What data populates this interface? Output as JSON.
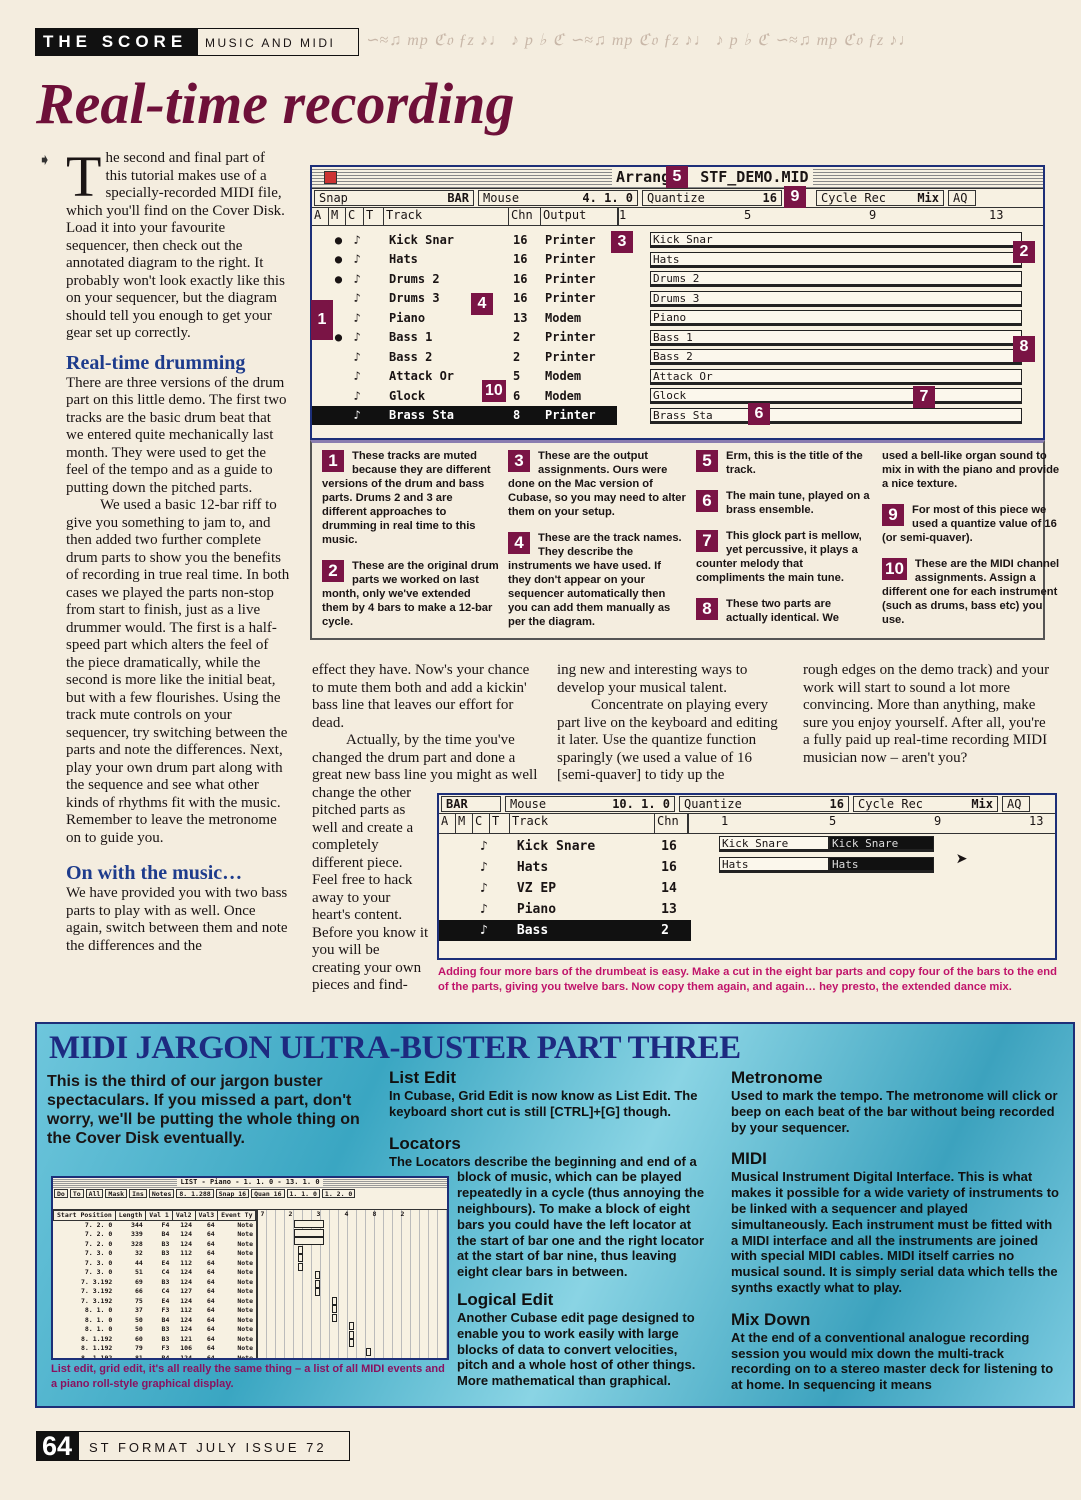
{
  "header": {
    "section": "THE SCORE",
    "subsection": "MUSIC AND MIDI",
    "decoration": "∽≈♫ mp ℭ𝔬 ƒz ♪♩ ♪ p ♭ ℭ ∽≈♫ mp ℭ𝔬 ƒz ♪♩ ♪ p ♭ ℭ ∽≈♫ mp ℭ𝔬 ƒz ♪♩"
  },
  "title": "Real-time recording",
  "intro": {
    "dropcap": "T",
    "text": "he second and final part of this tutorial makes use of a specially-recorded MIDI file, which you'll find on the Cover Disk. Load it into your favourite sequencer, then check out the annotated diagram to the right. It probably won't look exactly like this on your sequencer, but the diagram should tell you enough to get your gear set up correctly."
  },
  "drumming": {
    "heading": "Real-time drumming",
    "p1": "There are three versions of the drum part on this little demo. The first two tracks are the basic drum beat that we entered quite mechanically last month. They were used to get the feel of the tempo and as a guide to putting down the pitched parts.",
    "p2": "We used a basic 12-bar riff to give you something to jam to, and then added two further complete drum parts to show you the benefits of recording in true real time. In both cases we played the parts non-stop from start to finish, just as a live drummer would. The first is a half-speed part which alters the feel of the piece dramatically, while the second is more like the initial beat, but with a few flourishes. Using the track mute controls on your sequencer, try switching between the parts and note the differences. Next, play your own drum part along with the sequence and see what other kinds of rhythms fit with the music. Remember to leave the metronome on to guide you."
  },
  "music": {
    "heading": "On with the music…",
    "p1": "We have provided you with two bass parts to play with as well. Once again, switch between them and note the differences and the"
  },
  "col2": {
    "p1": "effect they have. Now's your chance to mute them both and add a kickin' bass line that leaves our effort for dead.",
    "p2": "Actually, by the time you've changed the drum part and done a great new bass line you might as",
    "p3": "well change the other pitched parts as well and create a completely different piece. Feel free to hack away to your heart's content. Before you know it you will be creating your own pieces and find-"
  },
  "col3": {
    "p1": "ing new and interesting ways to develop your musical talent.",
    "p2": "Concentrate on playing every part live on the keyboard and editing it later. Use the quantize function sparingly (we used a value of 16 [semi-quaver] to tidy up the"
  },
  "col4": {
    "p1": "rough edges on the demo track) and your work will start to sound a lot more convincing. More than anything, make sure you enjoy yourself. After all, you're a fully paid up real-time recording MIDI musician now – aren't you?"
  },
  "arrange": {
    "title_left": "Arrang",
    "title_right": "STF_DEMO.MID",
    "snap_label": "Snap",
    "snap_value": "BAR",
    "mouse_label": "Mouse",
    "mouse_value": "4. 1.   0",
    "quantize_label": "Quantize",
    "quantize_value": "16",
    "cycle_label": "Cycle Rec",
    "mix_label": "Mix",
    "aq_label": "AQ",
    "columns": [
      "A",
      "M",
      "C",
      "T",
      "Track",
      "Chn",
      "Output"
    ],
    "ruler": [
      "1",
      "5",
      "9",
      "13"
    ],
    "tracks": [
      {
        "name": "Kick Snar",
        "chn": "16",
        "output": "Printer",
        "muted": true
      },
      {
        "name": "Hats",
        "chn": "16",
        "output": "Printer",
        "muted": true
      },
      {
        "name": "Drums 2",
        "chn": "16",
        "output": "Printer",
        "muted": true
      },
      {
        "name": "Drums 3",
        "chn": "16",
        "output": "Printer",
        "muted": false
      },
      {
        "name": "Piano",
        "chn": "13",
        "output": "Modem",
        "muted": false
      },
      {
        "name": "Bass 1",
        "chn": "2",
        "output": "Printer",
        "muted": true
      },
      {
        "name": "Bass 2",
        "chn": "2",
        "output": "Printer",
        "muted": false
      },
      {
        "name": "Attack Or",
        "chn": "5",
        "output": "Modem",
        "muted": false
      },
      {
        "name": "Glock",
        "chn": "6",
        "output": "Modem",
        "muted": false
      },
      {
        "name": "Brass Sta",
        "chn": "8",
        "output": "Printer",
        "muted": false,
        "selected": true
      }
    ]
  },
  "badges": [
    "1",
    "2",
    "3",
    "4",
    "5",
    "6",
    "7",
    "8",
    "9",
    "10"
  ],
  "notes": [
    {
      "n": "1",
      "text": "These tracks are muted because they are different versions of the drum and bass parts. Drums 2 and 3 are different approaches to drumming in real time to this music."
    },
    {
      "n": "2",
      "text": "These are the original drum parts we worked on last month, only we've extended them by 4 bars to make a 12-bar cycle."
    },
    {
      "n": "3",
      "text": "These are the output assignments. Ours were done on the Mac version of Cubase, so you may need to alter them on your setup."
    },
    {
      "n": "4",
      "text": "These are the track names. They describe the instruments we have used. If they don't appear on your sequencer automatically then you can add them manually as per the diagram."
    },
    {
      "n": "5",
      "text": "Erm, this is the title of the track."
    },
    {
      "n": "6",
      "text": "The main tune, played on a brass ensemble."
    },
    {
      "n": "7",
      "text": "This glock part is mellow, yet percussive, it plays a counter melody that compliments the main tune."
    },
    {
      "n": "8",
      "text": "These two parts are actually identical. We"
    },
    {
      "n": "",
      "text": "used a bell-like organ sound to mix in with the piano and provide a nice texture."
    },
    {
      "n": "9",
      "text": "For most of this piece we used a quantize value of 16 (or semi-quaver)."
    },
    {
      "n": "10",
      "text": "These are the MIDI channel assignments. Assign a different one for each instrument (such as drums, bass etc) you use."
    }
  ],
  "arrange2": {
    "snap_value": "BAR",
    "mouse_label": "Mouse",
    "mouse_value": "10. 1.   0",
    "quantize_label": "Quantize",
    "quantize_value": "16",
    "cycle_label": "Cycle Rec",
    "mix_label": "Mix",
    "aq_label": "AQ",
    "columns": [
      "A",
      "M",
      "C",
      "T",
      "Track",
      "Chn"
    ],
    "ruler": [
      "1",
      "5",
      "9",
      "13"
    ],
    "tracks": [
      {
        "name": "Kick Snare",
        "chn": "16"
      },
      {
        "name": "Hats",
        "chn": "16"
      },
      {
        "name": "VZ EP",
        "chn": "14"
      },
      {
        "name": "Piano",
        "chn": "13"
      },
      {
        "name": "Bass",
        "chn": "2",
        "selected": true
      }
    ],
    "parts": [
      {
        "a": "Kick Snare",
        "b": "Kick Snare"
      },
      {
        "a": "Hats",
        "b": "Hats"
      }
    ],
    "caption": "Adding four more bars of the drumbeat is easy. Make a cut in the eight bar parts and copy four of the bars to the end of the parts, giving you twelve bars. Now copy them again, and again… hey presto, the extended dance mix."
  },
  "jargon": {
    "title": "MIDI JARGON ULTRA-BUSTER PART THREE",
    "intro": "This is the third of our jargon buster spectaculars. If you missed a part, don't worry, we'll be putting the whole thing on the Cover Disk eventually.",
    "list_edit": {
      "heading": "List Edit",
      "text": "In Cubase, Grid Edit is now know as List Edit. The keyboard short cut is still [CTRL]+[G] though."
    },
    "locators": {
      "heading": "Locators",
      "text": "The Locators describe the beginning and end of a block of music, which can be played repeatedly in a cycle (thus annoying the neighbours). To make a block of eight bars you could have the left locator at the start of bar one and the right locator at the start of bar nine, thus leaving eight clear bars in between."
    },
    "logical_edit": {
      "heading": "Logical Edit",
      "text": "Another Cubase edit page designed to enable you to work easily with large blocks of data to convert velocities, pitch and a whole host of other things. More mathematical than graphical."
    },
    "metronome": {
      "heading": "Metronome",
      "text": "Used to mark the tempo. The metronome will click or beep on each beat of the bar without being recorded by your sequencer."
    },
    "midi": {
      "heading": "MIDI",
      "text": "Musical Instrument Digital Interface. This is what makes it possible for a wide variety of instruments to be linked with a sequencer and played simultaneously. Each instrument must be fitted with a MIDI interface and all the instruments are joined with special MIDI cables. MIDI itself carries no musical sound. It is simply serial data which tells the synths exactly what to play."
    },
    "mixdown": {
      "heading": "Mix Down",
      "text": "At the end of a conventional analogue recording session you would mix down the multi-track recording on to a stereo master deck for listening to at home. In sequencing it means"
    },
    "list_window": {
      "title": "LIST - Piano -   1. 1. 0 -  13. 1. 0",
      "toolbar": [
        "Do",
        "To",
        "All",
        "Mask",
        "Ins",
        "Notes",
        "8. 1.288",
        "Snap 16",
        "Quan 16",
        "1. 1.  0",
        "1. 2.  0"
      ],
      "columns": [
        "Start Position",
        "Length",
        "Val 1",
        "Val2",
        "Val3",
        "Event Ty"
      ],
      "rows": [
        [
          "7. 2.   0",
          "344",
          "F4",
          "124",
          "64",
          "Note"
        ],
        [
          "7. 2.   0",
          "339",
          "B4",
          "124",
          "64",
          "Note"
        ],
        [
          "7. 2.   0",
          "328",
          "B3",
          "124",
          "64",
          "Note"
        ],
        [
          "7. 3.   0",
          "32",
          "B3",
          "112",
          "64",
          "Note"
        ],
        [
          "7. 3.   0",
          "44",
          "E4",
          "112",
          "64",
          "Note"
        ],
        [
          "7. 3.   0",
          "51",
          "C4",
          "124",
          "64",
          "Note"
        ],
        [
          "7. 3.192",
          "69",
          "B3",
          "124",
          "64",
          "Note"
        ],
        [
          "7. 3.192",
          "66",
          "C4",
          "127",
          "64",
          "Note"
        ],
        [
          "7. 3.192",
          "75",
          "E4",
          "124",
          "64",
          "Note"
        ],
        [
          "8. 1.   0",
          "37",
          "F3",
          "112",
          "64",
          "Note"
        ],
        [
          "8. 1.   0",
          "50",
          "B4",
          "124",
          "64",
          "Note"
        ],
        [
          "8. 1.   0",
          "50",
          "B3",
          "124",
          "64",
          "Note"
        ],
        [
          "8. 1.192",
          "60",
          "B3",
          "121",
          "64",
          "Note"
        ],
        [
          "8. 1.192",
          "79",
          "F3",
          "106",
          "64",
          "Note"
        ],
        [
          "8. 1.192",
          "81",
          "B4",
          "124",
          "64",
          "Note"
        ],
        [
          "8. 2.192",
          "48",
          "E3",
          "112",
          "64",
          "Note"
        ]
      ],
      "ruler": [
        "7",
        "2",
        "3",
        "4",
        "8",
        "2"
      ]
    },
    "list_caption": "List edit, grid edit, it's all really the same thing – a list of all MIDI events and a piano roll-style graphical display."
  },
  "footer": {
    "page": "64",
    "issue": "ST FORMAT JULY ISSUE 72"
  },
  "colors": {
    "accent": "#7a1445",
    "heading_blue": "#1e3c8c",
    "caption_pink": "#c0146a",
    "jargon_bg": "#3aa6c2"
  }
}
